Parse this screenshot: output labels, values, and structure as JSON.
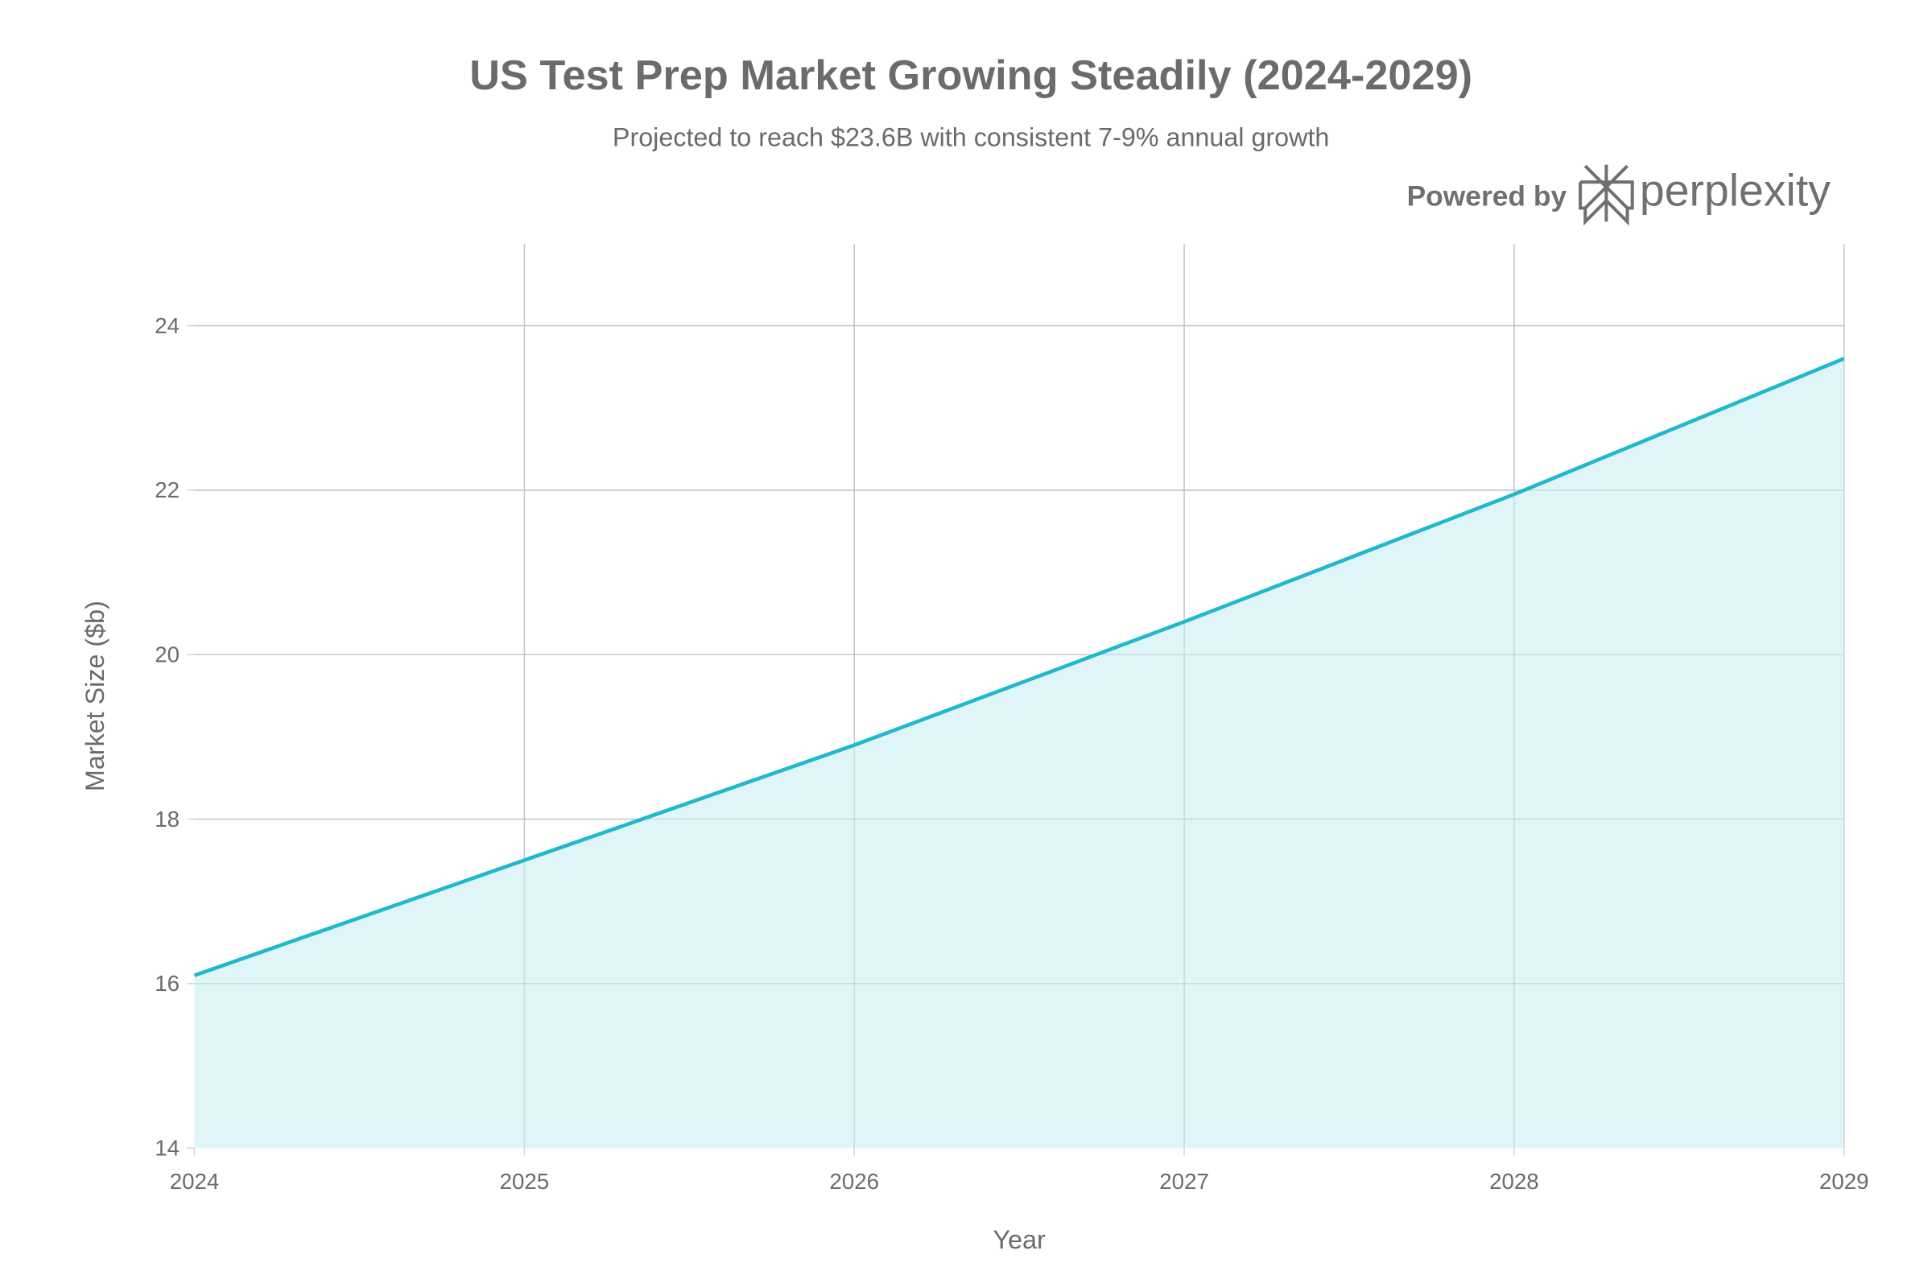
{
  "chart_data": {
    "type": "area",
    "title": "US Test Prep Market Growing Steadily (2024-2029)",
    "subtitle": "Projected to reach $23.6B with consistent 7-9% annual growth",
    "xlabel": "Year",
    "ylabel": "Market Size ($b)",
    "x": [
      2024,
      2025,
      2026,
      2027,
      2028,
      2029
    ],
    "values": [
      16.1,
      17.5,
      18.9,
      20.4,
      21.95,
      23.6
    ],
    "xlim": [
      2024,
      2029
    ],
    "ylim": [
      14,
      25
    ],
    "yticks": [
      14,
      16,
      18,
      20,
      22,
      24
    ],
    "xticks": [
      2024,
      2025,
      2026,
      2027,
      2028,
      2029
    ],
    "grid": true,
    "legend": "none",
    "colors": {
      "line": "#1FB8CD",
      "fill": "#DDF4F8",
      "text": "#6b6b6b",
      "grid": "#d6d6d6"
    }
  },
  "branding": {
    "powered_by": "Powered by",
    "logo_text": "perplexity"
  }
}
